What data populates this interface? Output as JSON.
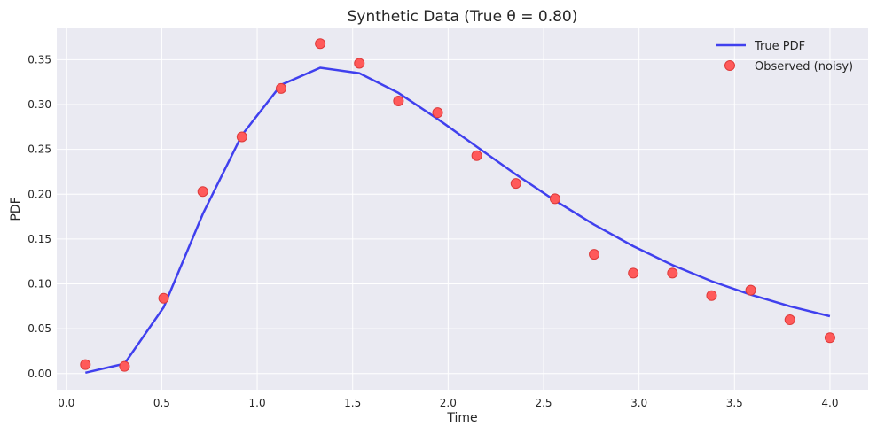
{
  "chart_data": {
    "type": "line",
    "title": "Synthetic Data (True θ = 0.80)",
    "xlabel": "Time",
    "ylabel": "PDF",
    "xlim": [
      -0.05,
      4.2
    ],
    "ylim": [
      -0.018,
      0.385
    ],
    "xticks": [
      0.0,
      0.5,
      1.0,
      1.5,
      2.0,
      2.5,
      3.0,
      3.5,
      4.0
    ],
    "xtick_labels": [
      "0.0",
      "0.5",
      "1.0",
      "1.5",
      "2.0",
      "2.5",
      "3.0",
      "3.5",
      "4.0"
    ],
    "yticks": [
      0.0,
      0.05,
      0.1,
      0.15,
      0.2,
      0.25,
      0.3,
      0.35
    ],
    "ytick_labels": [
      "0.00",
      "0.05",
      "0.10",
      "0.15",
      "0.20",
      "0.25",
      "0.30",
      "0.35"
    ],
    "grid": true,
    "legend_position": "top-right",
    "series": [
      {
        "name": "True PDF",
        "kind": "line",
        "color": "#0000ff",
        "x": [
          0.1,
          0.305,
          0.51,
          0.715,
          0.92,
          1.125,
          1.33,
          1.535,
          1.74,
          1.945,
          2.15,
          2.355,
          2.56,
          2.765,
          2.97,
          3.175,
          3.38,
          3.585,
          3.79,
          4.0
        ],
        "y": [
          0.001,
          0.011,
          0.074,
          0.178,
          0.266,
          0.322,
          0.341,
          0.335,
          0.313,
          0.284,
          0.253,
          0.222,
          0.193,
          0.166,
          0.142,
          0.121,
          0.103,
          0.088,
          0.075,
          0.064
        ]
      },
      {
        "name": "Observed (noisy)",
        "kind": "scatter",
        "color": "#ff0000",
        "x": [
          0.1,
          0.305,
          0.51,
          0.715,
          0.92,
          1.125,
          1.33,
          1.535,
          1.74,
          1.945,
          2.15,
          2.355,
          2.56,
          2.765,
          2.97,
          3.175,
          3.38,
          3.585,
          3.79,
          4.0
        ],
        "y": [
          0.01,
          0.008,
          0.084,
          0.203,
          0.264,
          0.318,
          0.368,
          0.346,
          0.304,
          0.291,
          0.243,
          0.212,
          0.195,
          0.133,
          0.112,
          0.112,
          0.087,
          0.093,
          0.06,
          0.04
        ]
      }
    ]
  }
}
